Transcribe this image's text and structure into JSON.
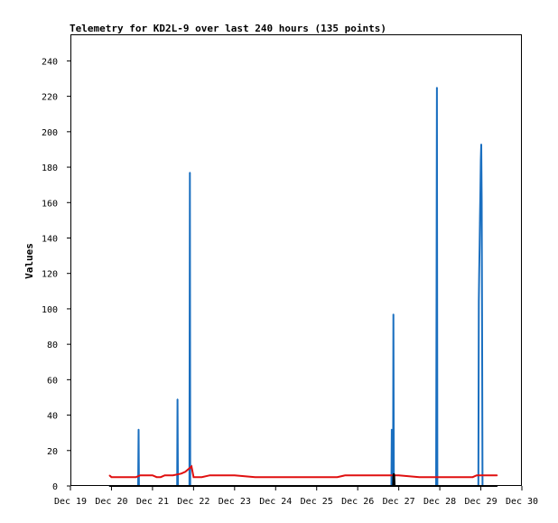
{
  "chart_data": {
    "type": "line",
    "title": "Telemetry for KD2L-9 over last 240 hours (135 points)",
    "xlabel": "",
    "ylabel": "Values",
    "x_tick_labels": [
      "Dec 19",
      "Dec 20",
      "Dec 21",
      "Dec 22",
      "Dec 23",
      "Dec 24",
      "Dec 25",
      "Dec 26",
      "Dec 27",
      "Dec 28",
      "Dec 29",
      "Dec 30"
    ],
    "y_ticks": [
      0,
      20,
      40,
      60,
      80,
      100,
      120,
      140,
      160,
      180,
      200,
      220,
      240
    ],
    "xlim": [
      0,
      11
    ],
    "ylim": [
      0,
      255
    ],
    "grid": false,
    "colors": {
      "series_a": "#1a6fc0",
      "series_b": "#e01010",
      "series_c": "#000000"
    },
    "series": [
      {
        "key": "series_a",
        "x": [
          0.95,
          1.65,
          1.66,
          1.67,
          2.6,
          2.61,
          2.62,
          2.9,
          2.91,
          2.92,
          7.82,
          7.83,
          7.84,
          7.86,
          7.87,
          7.88,
          8.91,
          8.92,
          8.93,
          8.94,
          8.95,
          8.96,
          9.94,
          9.95,
          9.96,
          9.97,
          9.98,
          9.99,
          10.0,
          10.01,
          10.02,
          10.03,
          10.04,
          10.05,
          10.06,
          10.07,
          10.08,
          10.09,
          10.1,
          10.3
        ],
        "y": [
          0,
          0,
          32,
          0,
          0,
          49,
          0,
          0,
          177,
          0,
          0,
          32,
          0,
          0,
          97,
          0,
          0,
          112,
          225,
          0,
          0,
          0,
          0,
          104,
          120,
          136,
          152,
          168,
          184,
          193,
          160,
          96,
          0,
          0,
          0,
          0,
          0,
          0,
          0,
          0
        ]
      },
      {
        "key": "series_b",
        "x": [
          0.95,
          1.0,
          1.2,
          1.4,
          1.6,
          1.7,
          2.0,
          2.1,
          2.2,
          2.3,
          2.5,
          2.7,
          2.8,
          2.85,
          2.9,
          2.95,
          3.0,
          3.2,
          3.4,
          3.5,
          3.6,
          4.0,
          4.5,
          5.0,
          5.5,
          6.0,
          6.5,
          6.7,
          7.0,
          7.5,
          8.0,
          8.5,
          9.0,
          9.5,
          9.8,
          9.9,
          10.2,
          10.4
        ],
        "y": [
          6,
          5,
          5,
          5,
          5,
          6,
          6,
          5,
          5,
          6,
          6,
          7,
          8,
          9,
          10,
          11,
          5,
          5,
          6,
          6,
          6,
          6,
          5,
          5,
          5,
          5,
          5,
          6,
          6,
          6,
          6,
          5,
          5,
          5,
          5,
          6,
          6,
          6
        ]
      },
      {
        "key": "series_c",
        "x": [
          0.95,
          7.7,
          7.86,
          7.87,
          7.88,
          7.89,
          7.9,
          10.4
        ],
        "y": [
          0,
          0,
          0,
          6,
          7,
          6,
          0,
          0
        ]
      }
    ]
  }
}
